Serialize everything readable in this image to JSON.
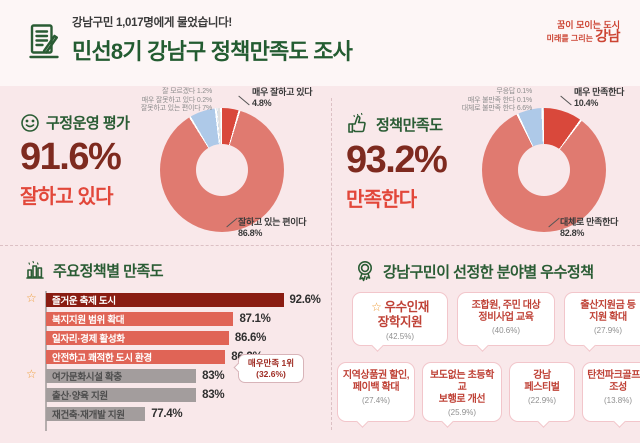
{
  "header": {
    "subtitle": "강남구민 1,017명에게 물었습니다!",
    "title": "민선8기 강남구 정책만족도 조사",
    "logo": {
      "line1": "꿈이 모이는 도시",
      "line2_prefix": "미래를 그리는 ",
      "brand": "강남"
    }
  },
  "colors": {
    "accent_green": "#235c31",
    "maroon": "#7e2a1f",
    "accent_red": "#e2473a",
    "salmon": "#e07a70",
    "strong_red": "#d9483b",
    "light_blue": "#aec9e8",
    "pale_blue": "#c5d7ee",
    "pale_gray": "#e0e0e0",
    "dark_bar": "#8a1c12",
    "salmon_bar": "#e06456",
    "gray_bar": "#a39d9d",
    "background_pink": "#f9e8ea"
  },
  "chart_data": [
    {
      "type": "pie",
      "title": "구정운영 평가",
      "headline_value": "91.6%",
      "headline_caption": "잘하고 있다",
      "slices": [
        {
          "label": "매우 잘하고 있다",
          "value": 4.8,
          "color": "#d9483b"
        },
        {
          "label": "잘하고 있는 편이다",
          "value": 86.8,
          "color": "#e07a70"
        },
        {
          "label": "잘못하고 있는 편이다",
          "value": 7.0,
          "color": "#aec9e8"
        },
        {
          "label": "매우 잘못하고 있다",
          "value": 0.2,
          "color": "#c5d7ee"
        },
        {
          "label": "잘 모르겠다",
          "value": 1.2,
          "color": "#e0e0e0"
        }
      ],
      "minor_labels": [
        "잘 모르겠다 1.2%",
        "매우 잘못하고 있다 0.2%",
        "잘못하고 있는 편이다 7%"
      ],
      "top_label_line1": "매우 잘하고 있다",
      "top_label_line2": "4.8%",
      "bottom_label_line1": "잘하고 있는 편이다",
      "bottom_label_line2": "86.8%"
    },
    {
      "type": "pie",
      "title": "정책만족도",
      "headline_value": "93.2%",
      "headline_caption": "만족한다",
      "slices": [
        {
          "label": "매우 만족한다",
          "value": 10.4,
          "color": "#d9483b"
        },
        {
          "label": "대체로 만족한다",
          "value": 82.8,
          "color": "#e07a70"
        },
        {
          "label": "대체로 불만족 한다",
          "value": 6.6,
          "color": "#aec9e8"
        },
        {
          "label": "매우 불만족 한다",
          "value": 0.1,
          "color": "#c5d7ee"
        },
        {
          "label": "무응답",
          "value": 0.1,
          "color": "#e0e0e0"
        }
      ],
      "minor_labels": [
        "무응답 0.1%",
        "매우 불만족 한다 0.1%",
        "대체로 불만족 한다 6.6%"
      ],
      "top_label_line1": "매우 만족한다",
      "top_label_line2": "10.4%",
      "bottom_label_line1": "대체로 만족한다",
      "bottom_label_line2": "82.8%"
    },
    {
      "type": "bar",
      "title": "주요정책별 만족도",
      "x_baseline": 66.5,
      "bars": [
        {
          "label": "즐거운 축제 도시",
          "value": 92.6,
          "display": "92.6%",
          "color": "#8a1c12",
          "text_color": "#ffffff",
          "starred": true
        },
        {
          "label": "복지지원 범위 확대",
          "value": 87.1,
          "display": "87.1%",
          "color": "#e06456",
          "text_color": "#ffffff",
          "starred": false
        },
        {
          "label": "일자리·경제 활성화",
          "value": 86.6,
          "display": "86.6%",
          "color": "#e06456",
          "text_color": "#ffffff",
          "starred": false
        },
        {
          "label": "안전하고 쾌적한 도시 환경",
          "value": 86.2,
          "display": "86.2%",
          "color": "#e06456",
          "text_color": "#ffffff",
          "starred": false
        },
        {
          "label": "여가문화시설 확충",
          "value": 83,
          "display": "83%",
          "color": "#a39d9d",
          "text_color": "#4d4d4d",
          "starred": true
        },
        {
          "label": "출산·양육 지원",
          "value": 83,
          "display": "83%",
          "color": "#a39d9d",
          "text_color": "#4d4d4d",
          "starred": false
        },
        {
          "label": "재건축·재개발 지원",
          "value": 77.4,
          "display": "77.4%",
          "color": "#a39d9d",
          "text_color": "#4d4d4d",
          "starred": false
        }
      ],
      "callout": {
        "line1": "매우만족 1위",
        "line2": "(32.6%)"
      }
    }
  ],
  "best_policies": {
    "title": "강남구민이 선정한 분야별 우수정책",
    "bubbles": [
      {
        "line1": "우수인재",
        "line2": "장학지원",
        "pct": "(42.5%)",
        "starred": true
      },
      {
        "line1": "조합원, 주민 대상",
        "line2": "정비사업 교육",
        "pct": "(40.6%)"
      },
      {
        "line1": "출산지원금 등",
        "line2": "지원 확대",
        "pct": "(27.9%)"
      },
      {
        "line1": "지역상품권 할인,",
        "line2": "페이백 확대",
        "pct": "(27.4%)"
      },
      {
        "line1": "보도없는 초등학교",
        "line2": "보행로 개선",
        "pct": "(25.9%)"
      },
      {
        "line1": "강남",
        "line2": "페스티벌",
        "pct": "(22.9%)"
      },
      {
        "line1": "탄천파크골프장",
        "line2": "조성",
        "pct": "(13.8%)"
      }
    ]
  }
}
